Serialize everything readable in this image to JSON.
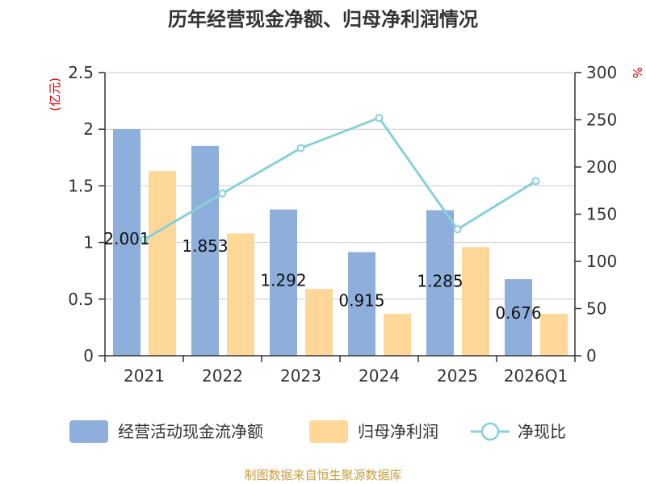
{
  "title": "历年经营现金净额、归母净利润情况",
  "source_text": "制图数据来自恒生聚源数据库",
  "colors": {
    "cash_flow": "#8eaedb",
    "net_profit": "#ffd899",
    "ratio": "#88d0d8",
    "unit": "#e00000",
    "source": "#c8a040"
  },
  "chart_data": {
    "type": "bar",
    "title": "历年经营现金净额、归母净利润情况",
    "categories": [
      "2021",
      "2022",
      "2023",
      "2024",
      "2025",
      "2026Q1"
    ],
    "y_left": {
      "unit_label": "(亿元)",
      "ylim": [
        0,
        2.5
      ],
      "ticks": [
        0,
        0.5,
        1,
        1.5,
        2,
        2.5
      ],
      "tick_labels": [
        "0",
        "0.5",
        "1",
        "1.5",
        "2",
        "2.5"
      ]
    },
    "y_right": {
      "unit_label": "%",
      "ylim": [
        0,
        300
      ],
      "ticks": [
        0,
        50,
        100,
        150,
        200,
        250,
        300
      ],
      "tick_labels": [
        "0",
        "50",
        "100",
        "150",
        "200",
        "250",
        "300"
      ]
    },
    "grid": true,
    "legend_position": "bottom",
    "series": [
      {
        "name": "经营活动现金流净额",
        "kind": "bar",
        "axis": "left",
        "values": [
          2.001,
          1.853,
          1.292,
          0.915,
          1.285,
          0.676
        ],
        "labels": [
          "2.001",
          "1.853",
          "1.292",
          "0.915",
          "1.285",
          "0.676"
        ]
      },
      {
        "name": "归母净利润",
        "kind": "bar",
        "axis": "left",
        "values": [
          1.63,
          1.08,
          0.59,
          0.37,
          0.96,
          0.37
        ]
      },
      {
        "name": "净现比",
        "kind": "line",
        "axis": "right",
        "values": [
          123,
          172,
          220,
          252,
          134,
          185
        ]
      }
    ]
  }
}
